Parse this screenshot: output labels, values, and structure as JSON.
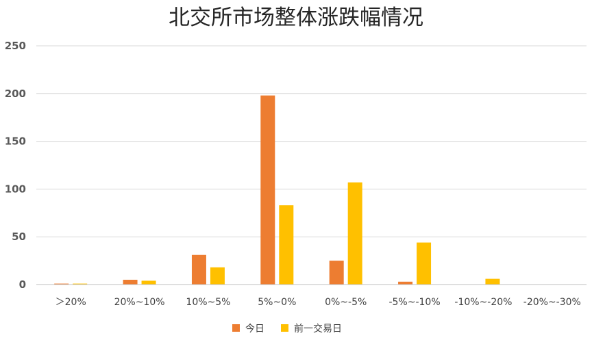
{
  "chart_data": {
    "type": "bar",
    "title": "北交所市场整体涨跌幅情况",
    "categories": [
      "＞20%",
      "20%~10%",
      "10%~5%",
      "5%~0%",
      "0%~-5%",
      "-5%~-10%",
      "-10%~-20%",
      "-20%~-30%"
    ],
    "series": [
      {
        "name": "今日",
        "color": "#ED7D31",
        "values": [
          1,
          5,
          31,
          198,
          25,
          3,
          0,
          0
        ]
      },
      {
        "name": "前一交易日",
        "color": "#FFC000",
        "values": [
          1,
          4,
          18,
          83,
          107,
          44,
          6,
          0
        ]
      }
    ],
    "ylim": [
      0,
      250
    ],
    "yticks": [
      0,
      50,
      100,
      150,
      200,
      250
    ],
    "grid": true,
    "legend": "bottom"
  }
}
